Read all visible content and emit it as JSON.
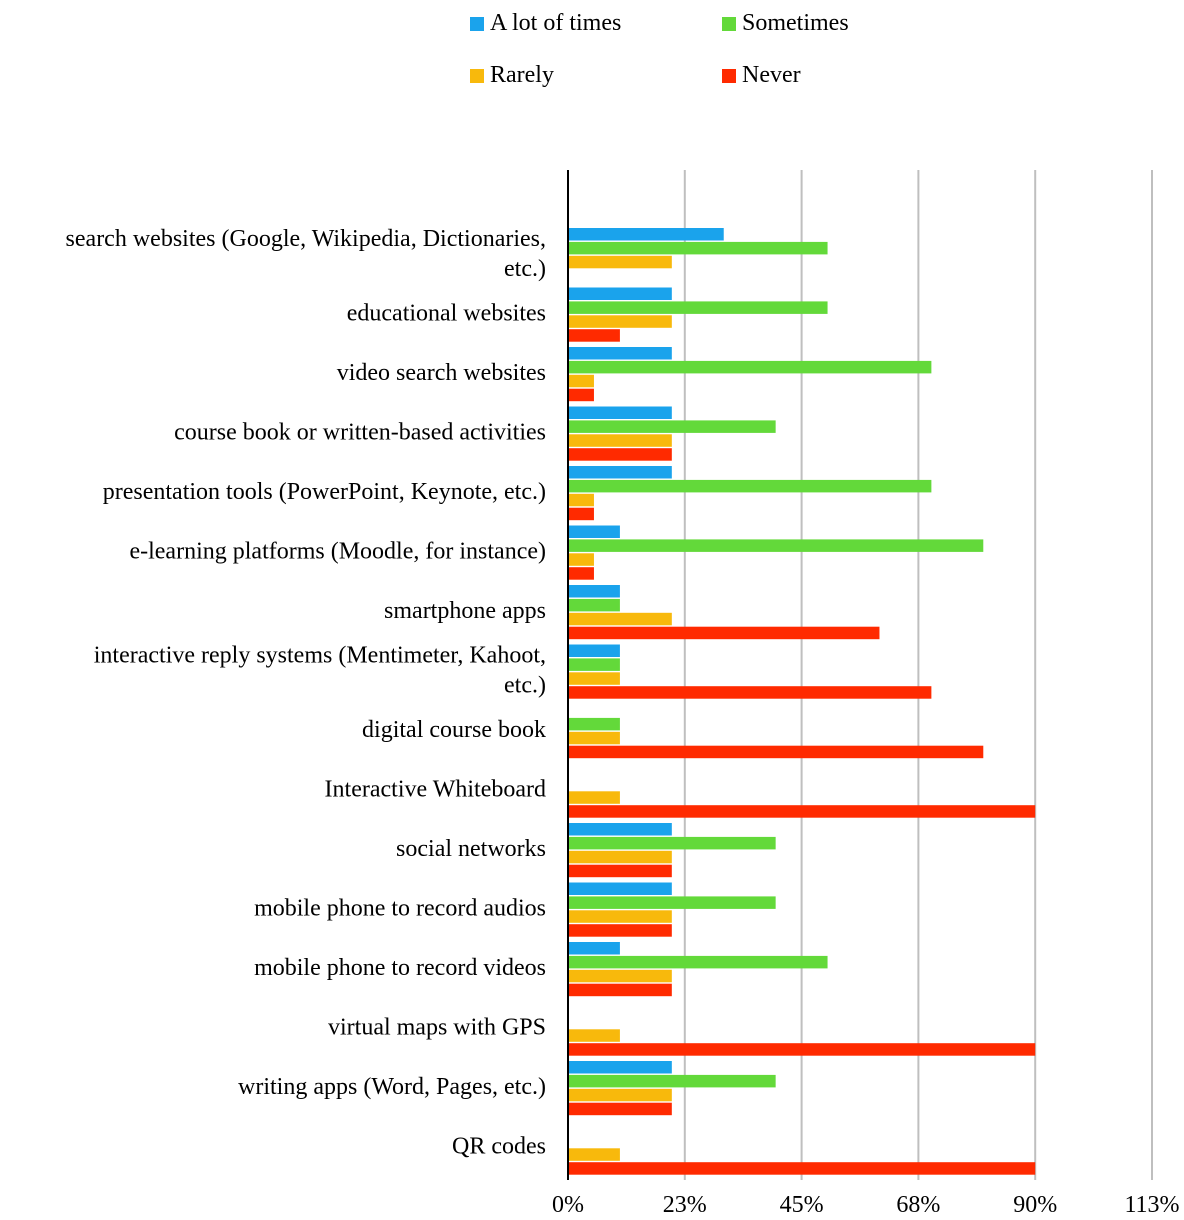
{
  "chart_data": {
    "type": "bar",
    "orientation": "horizontal",
    "categories": [
      "search websites (Google, Wikipedia, Dictionaries, etc.)",
      "educational websites",
      "video search websites",
      "course book or written-based activities",
      "presentation tools (PowerPoint, Keynote, etc.)",
      "e-learning platforms (Moodle, for instance)",
      "smartphone apps",
      "interactive reply systems (Mentimeter, Kahoot, etc.)",
      "digital course book",
      "Interactive Whiteboard",
      "social networks",
      "mobile phone to record audios",
      "mobile phone to record videos",
      "virtual maps with GPS",
      "writing apps (Word, Pages, etc.)",
      "QR codes"
    ],
    "category_lines": [
      [
        "search websites (Google, Wikipedia, Dictionaries,",
        "etc.)"
      ],
      [
        "educational websites"
      ],
      [
        "video search websites"
      ],
      [
        "course book or written-based activities"
      ],
      [
        "presentation tools (PowerPoint, Keynote, etc.)"
      ],
      [
        "e-learning platforms (Moodle, for instance)"
      ],
      [
        "smartphone apps"
      ],
      [
        "interactive reply systems (Mentimeter, Kahoot,",
        "etc.)"
      ],
      [
        "digital course book"
      ],
      [
        "Interactive Whiteboard"
      ],
      [
        "social networks"
      ],
      [
        "mobile phone to record audios"
      ],
      [
        "mobile phone to record videos"
      ],
      [
        "virtual maps with GPS"
      ],
      [
        "writing apps (Word, Pages, etc.)"
      ],
      [
        "QR codes"
      ]
    ],
    "series": [
      {
        "name": "A lot of times",
        "color": "#1aa3ec",
        "values": [
          30,
          20,
          20,
          20,
          20,
          10,
          10,
          10,
          0,
          0,
          20,
          20,
          10,
          0,
          20,
          0
        ]
      },
      {
        "name": "Sometimes",
        "color": "#63d93a",
        "values": [
          50,
          50,
          70,
          40,
          70,
          80,
          10,
          10,
          10,
          0,
          40,
          40,
          50,
          0,
          40,
          0
        ]
      },
      {
        "name": "Rarely",
        "color": "#f8b90c",
        "values": [
          20,
          20,
          5,
          20,
          5,
          5,
          20,
          10,
          10,
          10,
          20,
          20,
          20,
          10,
          20,
          10
        ]
      },
      {
        "name": "Never",
        "color": "#ff2a00",
        "values": [
          0,
          10,
          5,
          20,
          5,
          5,
          60,
          70,
          80,
          90,
          20,
          20,
          20,
          90,
          20,
          90
        ]
      }
    ],
    "xlim": [
      0,
      112.5
    ],
    "xticks": [
      0,
      22.5,
      45,
      67.5,
      90,
      112.5
    ],
    "xtick_labels": [
      "0%",
      "23%",
      "45%",
      "68%",
      "90%",
      "113%"
    ],
    "grid": true,
    "legend_position": "top",
    "title": "",
    "xlabel": "",
    "ylabel": ""
  }
}
